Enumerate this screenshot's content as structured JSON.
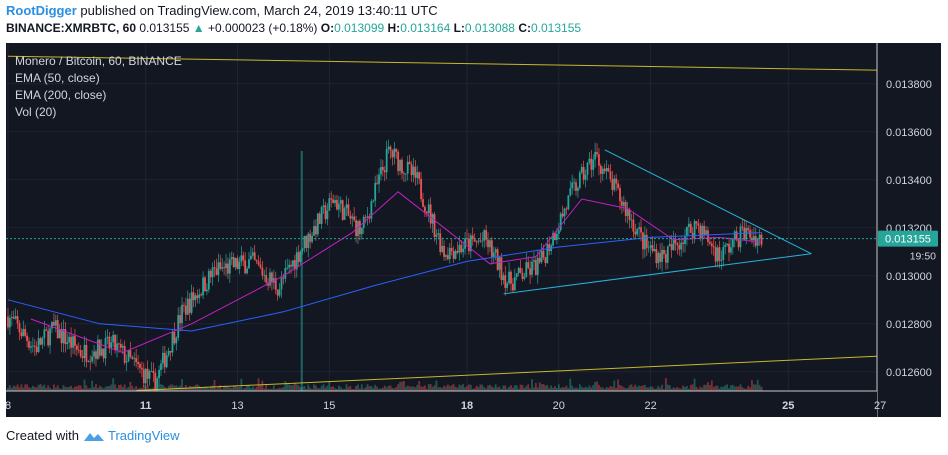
{
  "header": {
    "author": "RootDigger",
    "published_text": "published on TradingView.com, March 24, 2019 13:40:11 UTC",
    "symbol_line": "BINANCE:XMRBTC, 60",
    "price": "0.013155",
    "change_arrow": "▲",
    "change": "+0.000023 (+0.18%)",
    "o_label": "O:",
    "o_value": "0.013099",
    "h_label": "H:",
    "h_value": "0.013164",
    "l_label": "L:",
    "l_value": "0.013088",
    "c_label": "C:",
    "c_value": "0.013155"
  },
  "legend": {
    "title": "Monero / Bitcoin, 60, BINANCE",
    "ema50": "EMA (50, close)",
    "ema200": "EMA (200, close)",
    "vol": "Vol (20)"
  },
  "price_axis": {
    "ticks": [
      "0.013800",
      "0.013600",
      "0.013400",
      "0.013200",
      "0.013000",
      "0.012800",
      "0.012600"
    ],
    "current_price_label": "0.013155",
    "countdown_label": "19:50"
  },
  "time_axis": {
    "ticks": [
      "8",
      "11",
      "13",
      "15",
      "18",
      "20",
      "22",
      "25",
      "27"
    ],
    "bold_ticks": [
      "11",
      "18",
      "25"
    ]
  },
  "footer": {
    "created_with": "Created with",
    "brand": "TradingView"
  },
  "colors": {
    "background": "#131722",
    "grid": "#1f2433",
    "up": "#26a69a",
    "down": "#ef5350",
    "ema50": "#c41fc4",
    "ema200": "#2962ff",
    "trendline_yellow": "#c7b829",
    "triangle": "#27b2d6",
    "price_badge": "#26a69a"
  },
  "chart_data": {
    "type": "candlestick",
    "symbol": "BINANCE:XMRBTC",
    "interval": "60",
    "ylim": [
      0.01252,
      0.01397
    ],
    "x_range_days": [
      8,
      28
    ],
    "ohlc_close_path": [
      {
        "day": 8.0,
        "close": 0.01283
      },
      {
        "day": 8.6,
        "close": 0.0127
      },
      {
        "day": 9.0,
        "close": 0.01278
      },
      {
        "day": 9.6,
        "close": 0.01268
      },
      {
        "day": 10.3,
        "close": 0.01271
      },
      {
        "day": 10.8,
        "close": 0.01262
      },
      {
        "day": 11.2,
        "close": 0.01255
      },
      {
        "day": 11.8,
        "close": 0.01285
      },
      {
        "day": 12.5,
        "close": 0.01302
      },
      {
        "day": 13.3,
        "close": 0.01306
      },
      {
        "day": 13.9,
        "close": 0.01295
      },
      {
        "day": 14.4,
        "close": 0.01312
      },
      {
        "day": 15.1,
        "close": 0.01332
      },
      {
        "day": 15.7,
        "close": 0.01318
      },
      {
        "day": 16.3,
        "close": 0.01352
      },
      {
        "day": 16.9,
        "close": 0.0134
      },
      {
        "day": 17.5,
        "close": 0.0131
      },
      {
        "day": 18.4,
        "close": 0.01315
      },
      {
        "day": 18.9,
        "close": 0.01297
      },
      {
        "day": 19.6,
        "close": 0.01305
      },
      {
        "day": 20.3,
        "close": 0.01335
      },
      {
        "day": 20.8,
        "close": 0.0135
      },
      {
        "day": 21.4,
        "close": 0.0133
      },
      {
        "day": 21.9,
        "close": 0.01312
      },
      {
        "day": 22.3,
        "close": 0.01308
      },
      {
        "day": 23.0,
        "close": 0.01322
      },
      {
        "day": 23.5,
        "close": 0.01308
      },
      {
        "day": 24.0,
        "close": 0.01318
      },
      {
        "day": 24.4,
        "close": 0.013155
      }
    ],
    "ema50_path": [
      {
        "day": 8.5,
        "value": 0.01282
      },
      {
        "day": 10.5,
        "value": 0.01268
      },
      {
        "day": 12.0,
        "value": 0.0128
      },
      {
        "day": 14.0,
        "value": 0.013
      },
      {
        "day": 15.5,
        "value": 0.01318
      },
      {
        "day": 16.5,
        "value": 0.01335
      },
      {
        "day": 17.5,
        "value": 0.0132
      },
      {
        "day": 18.5,
        "value": 0.01305
      },
      {
        "day": 19.5,
        "value": 0.01308
      },
      {
        "day": 20.5,
        "value": 0.01332
      },
      {
        "day": 21.5,
        "value": 0.01328
      },
      {
        "day": 22.5,
        "value": 0.01315
      },
      {
        "day": 23.5,
        "value": 0.01316
      },
      {
        "day": 24.4,
        "value": 0.01314
      }
    ],
    "ema200_path": [
      {
        "day": 8.0,
        "value": 0.0129
      },
      {
        "day": 10.0,
        "value": 0.0128
      },
      {
        "day": 12.0,
        "value": 0.01277
      },
      {
        "day": 14.0,
        "value": 0.01285
      },
      {
        "day": 16.0,
        "value": 0.01296
      },
      {
        "day": 18.0,
        "value": 0.01306
      },
      {
        "day": 20.0,
        "value": 0.01312
      },
      {
        "day": 22.0,
        "value": 0.01316
      },
      {
        "day": 24.4,
        "value": 0.01318
      }
    ],
    "trendlines": [
      {
        "name": "upper channel",
        "from": {
          "day": 8.0,
          "price": 0.013915
        },
        "to": {
          "day": 27.5,
          "price": 0.013855
        }
      },
      {
        "name": "lower channel",
        "from": {
          "day": 10.8,
          "price": 0.012522
        },
        "to": {
          "day": 27.5,
          "price": 0.01267
        }
      },
      {
        "name": "triangle top",
        "from": {
          "day": 21.0,
          "price": 0.013525
        },
        "to": {
          "day": 25.5,
          "price": 0.013092
        }
      },
      {
        "name": "triangle bottom",
        "from": {
          "day": 18.8,
          "price": 0.012925
        },
        "to": {
          "day": 25.5,
          "price": 0.013092
        }
      }
    ],
    "current_price": 0.013155,
    "grid": true,
    "legend_position": "top-left"
  }
}
